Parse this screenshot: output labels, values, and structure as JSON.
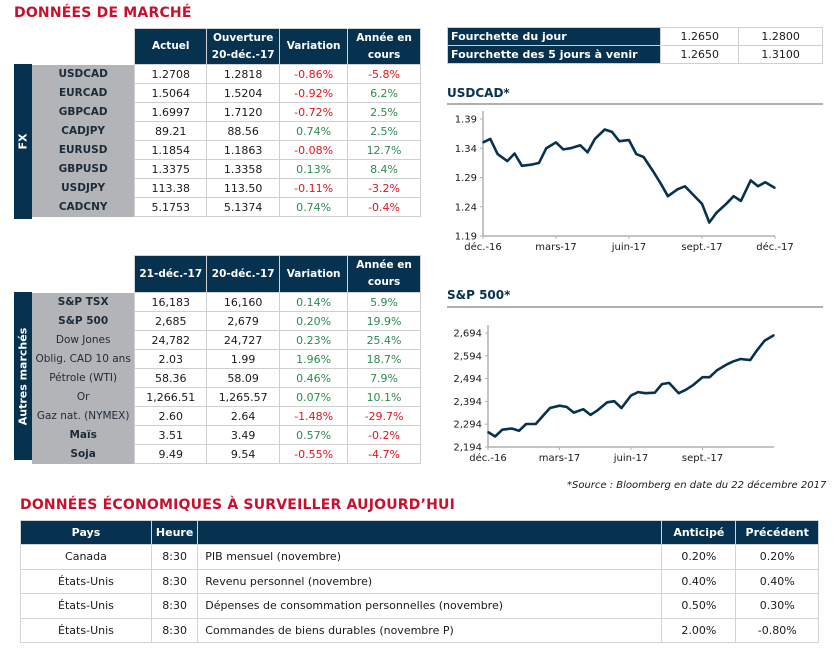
{
  "market_title": "DONNÉES DE MARCHÉ",
  "fx": {
    "section_label": "FX",
    "headers": [
      "Actuel",
      "Ouverture",
      "20-déc.-17",
      "Variation",
      "Année en",
      "cours"
    ],
    "rows": [
      {
        "name": "USDCAD",
        "actuel": "1.2708",
        "ouverture": "1.2818",
        "variation": "-0.86%",
        "annee": "-5.8%"
      },
      {
        "name": "EURCAD",
        "actuel": "1.5064",
        "ouverture": "1.5204",
        "variation": "-0.92%",
        "annee": "6.2%"
      },
      {
        "name": "GBPCAD",
        "actuel": "1.6997",
        "ouverture": "1.7120",
        "variation": "-0.72%",
        "annee": "2.5%"
      },
      {
        "name": "CADJPY",
        "actuel": "89.21",
        "ouverture": "88.56",
        "variation": "0.74%",
        "annee": "2.5%"
      },
      {
        "name": "EURUSD",
        "actuel": "1.1854",
        "ouverture": "1.1863",
        "variation": "-0.08%",
        "annee": "12.7%"
      },
      {
        "name": "GBPUSD",
        "actuel": "1.3375",
        "ouverture": "1.3358",
        "variation": "0.13%",
        "annee": "8.4%"
      },
      {
        "name": "USDJPY",
        "actuel": "113.38",
        "ouverture": "113.50",
        "variation": "-0.11%",
        "annee": "-3.2%"
      },
      {
        "name": "CADCNY",
        "actuel": "5.1753",
        "ouverture": "5.1374",
        "variation": "0.74%",
        "annee": "-0.4%"
      }
    ]
  },
  "other": {
    "section_label": "Autres marchés",
    "headers": [
      "21-déc.-17",
      "20-déc.-17",
      "Variation",
      "Année en",
      "cours"
    ],
    "rows": [
      {
        "name": "S&P TSX",
        "c1": "16,183",
        "c2": "16,160",
        "variation": "0.14%",
        "annee": "5.9%",
        "bold": true
      },
      {
        "name": "S&P 500",
        "c1": "2,685",
        "c2": "2,679",
        "variation": "0.20%",
        "annee": "19.9%",
        "bold": true
      },
      {
        "name": "Dow Jones",
        "c1": "24,782",
        "c2": "24,727",
        "variation": "0.23%",
        "annee": "25.4%",
        "bold": false
      },
      {
        "name": "Oblig. CAD 10 ans",
        "c1": "2.03",
        "c2": "1.99",
        "variation": "1.96%",
        "annee": "18.7%",
        "bold": false
      },
      {
        "name": "Pétrole (WTI)",
        "c1": "58.36",
        "c2": "58.09",
        "variation": "0.46%",
        "annee": "7.9%",
        "bold": false
      },
      {
        "name": "Or",
        "c1": "1,266.51",
        "c2": "1,265.57",
        "variation": "0.07%",
        "annee": "10.1%",
        "bold": false
      },
      {
        "name": "Gaz nat. (NYMEX)",
        "c1": "2.60",
        "c2": "2.64",
        "variation": "-1.48%",
        "annee": "-29.7%",
        "bold": false
      },
      {
        "name": "Maïs",
        "c1": "3.51",
        "c2": "3.49",
        "variation": "0.57%",
        "annee": "-0.2%",
        "bold": true
      },
      {
        "name": "Soja",
        "c1": "9.49",
        "c2": "9.54",
        "variation": "-0.55%",
        "annee": "-4.7%",
        "bold": true
      }
    ]
  },
  "ranges": [
    {
      "label": "Fourchette du jour",
      "low": "1.2650",
      "high": "1.2800"
    },
    {
      "label": "Fourchette des 5 jours à venir",
      "low": "1.2650",
      "high": "1.3100"
    }
  ],
  "colors": {
    "navy": "#07324f",
    "red_title": "#c8102e",
    "negative": "#e0141e",
    "positive": "#2e8b4f",
    "label_gray": "#b3b4b7"
  },
  "chart_data": [
    {
      "type": "line",
      "title": "USDCAD*",
      "xlabel": "",
      "ylabel": "",
      "x_ticks": [
        "déc.-16",
        "mars-17",
        "juin-17",
        "sept.-17",
        "déc.-17"
      ],
      "y_ticks": [
        "1.39",
        "1.34",
        "1.29",
        "1.24",
        "1.19"
      ],
      "ylim": [
        1.19,
        1.39
      ],
      "grid": false,
      "series": [
        {
          "name": "USDCAD",
          "x_months": [
            0,
            0.3,
            0.6,
            1.0,
            1.3,
            1.6,
            2.0,
            2.3,
            2.6,
            3.0,
            3.3,
            3.6,
            4.0,
            4.3,
            4.6,
            5.0,
            5.3,
            5.6,
            6.0,
            6.3,
            6.6,
            7.0,
            7.3,
            7.6,
            8.0,
            8.3,
            8.6,
            9.0,
            9.3,
            9.6,
            10.0,
            10.3,
            10.6,
            11.0,
            11.3,
            11.6,
            12.0
          ],
          "values": [
            1.35,
            1.356,
            1.33,
            1.318,
            1.331,
            1.31,
            1.312,
            1.315,
            1.34,
            1.35,
            1.338,
            1.34,
            1.345,
            1.333,
            1.356,
            1.372,
            1.368,
            1.352,
            1.354,
            1.33,
            1.325,
            1.3,
            1.28,
            1.258,
            1.27,
            1.275,
            1.262,
            1.245,
            1.213,
            1.23,
            1.245,
            1.258,
            1.25,
            1.285,
            1.275,
            1.282,
            1.272
          ]
        }
      ]
    },
    {
      "type": "line",
      "title": "S&P 500*",
      "xlabel": "",
      "ylabel": "",
      "x_ticks": [
        "déc.-16",
        "mars-17",
        "juin-17",
        "sept.-17"
      ],
      "y_ticks": [
        "2,694",
        "2,594",
        "2,494",
        "2,394",
        "2,294",
        "2,194"
      ],
      "ylim": [
        2194,
        2694
      ],
      "grid": false,
      "series": [
        {
          "name": "S&P 500",
          "x_months": [
            0,
            0.3,
            0.6,
            1.0,
            1.3,
            1.6,
            2.0,
            2.3,
            2.6,
            3.0,
            3.3,
            3.6,
            4.0,
            4.3,
            4.6,
            5.0,
            5.3,
            5.6,
            6.0,
            6.3,
            6.6,
            7.0,
            7.3,
            7.6,
            8.0,
            8.3,
            8.6,
            9.0,
            9.3,
            9.6,
            10.0,
            10.3,
            10.6,
            11.0,
            11.3,
            11.6,
            12.0
          ],
          "values": [
            2260,
            2240,
            2270,
            2275,
            2265,
            2295,
            2295,
            2330,
            2365,
            2375,
            2370,
            2345,
            2360,
            2335,
            2355,
            2390,
            2395,
            2365,
            2420,
            2435,
            2430,
            2432,
            2470,
            2475,
            2430,
            2445,
            2465,
            2500,
            2500,
            2530,
            2555,
            2570,
            2580,
            2575,
            2620,
            2660,
            2685
          ]
        }
      ]
    }
  ],
  "source_note": "*Source : Bloomberg en date du  22 décembre 2017",
  "eco": {
    "title": "DONNÉES ÉCONOMIQUES À SURVEILLER AUJOURD’HUI",
    "headers": {
      "pays": "Pays",
      "heure": "Heure",
      "event": "",
      "anticipe": "Anticipé",
      "precedent": "Précédent"
    },
    "rows": [
      {
        "pays": "Canada",
        "heure": "8:30",
        "event": "PIB mensuel (novembre)",
        "anticipe": "0.20%",
        "precedent": "0.20%"
      },
      {
        "pays": "États-Unis",
        "heure": "8:30",
        "event": "Revenu personnel (novembre)",
        "anticipe": "0.40%",
        "precedent": "0.40%"
      },
      {
        "pays": "États-Unis",
        "heure": "8:30",
        "event": "Dépenses de consommation personnelles (novembre)",
        "anticipe": "0.50%",
        "precedent": "0.30%"
      },
      {
        "pays": "États-Unis",
        "heure": "8:30",
        "event": "Commandes de biens durables (novembre P)",
        "anticipe": "2.00%",
        "precedent": "-0.80%"
      }
    ]
  }
}
